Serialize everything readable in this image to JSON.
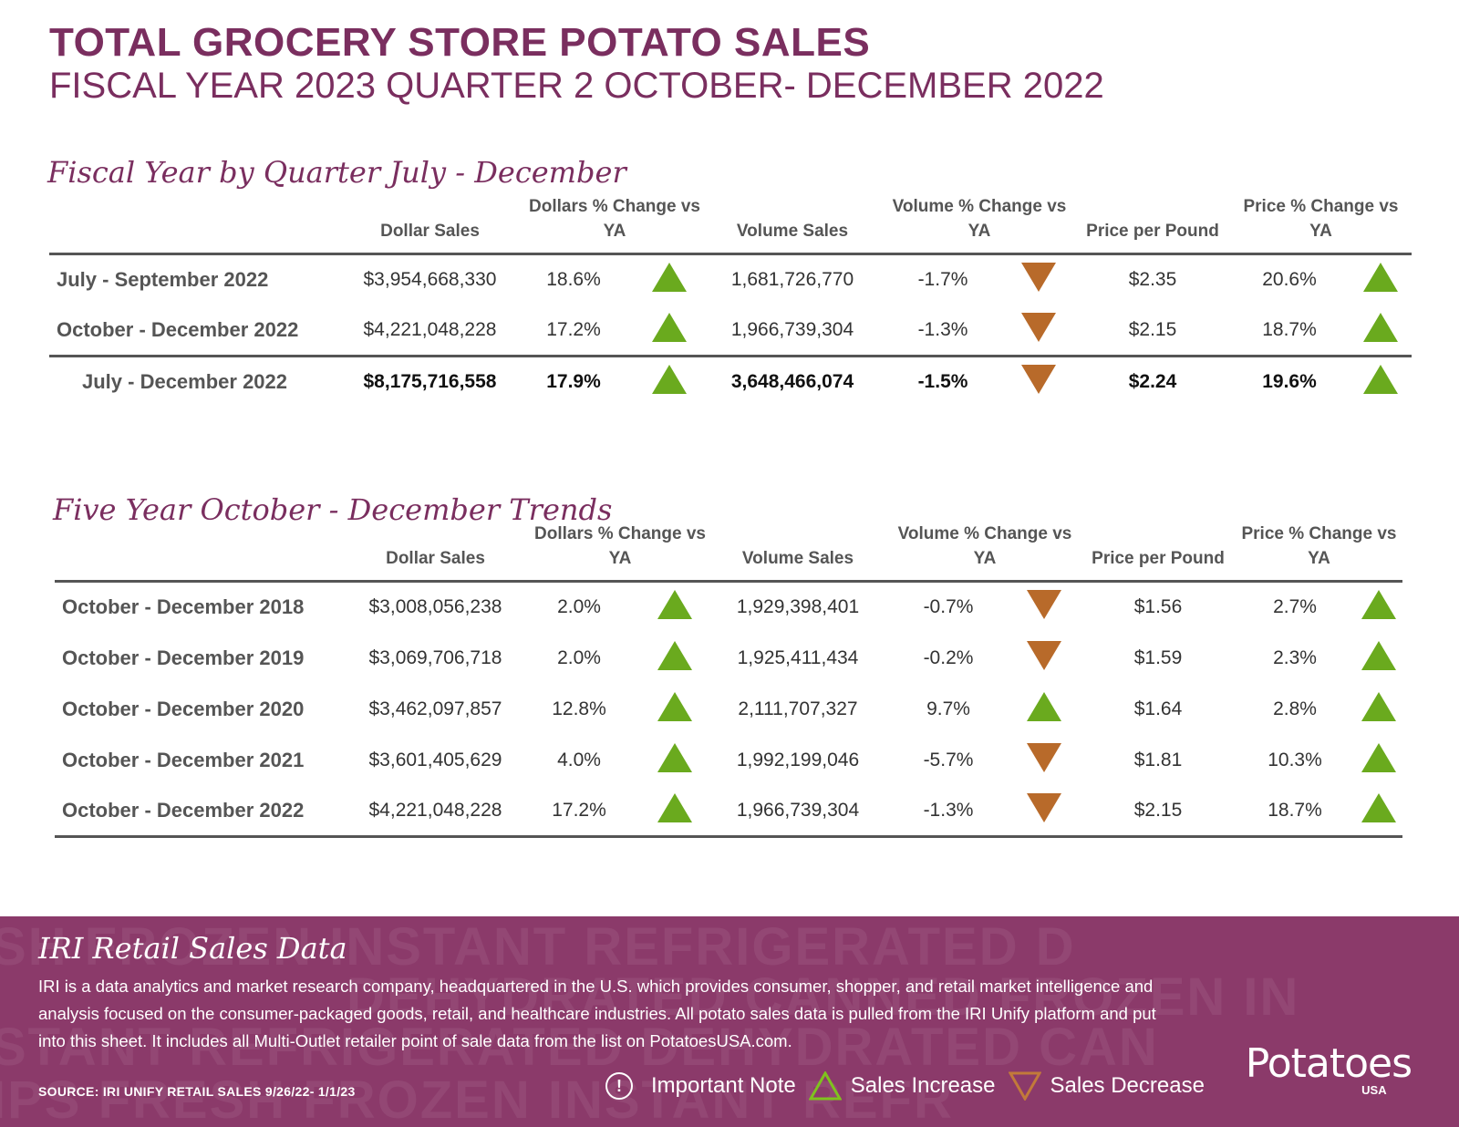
{
  "header": {
    "title": "TOTAL GROCERY STORE POTATO SALES",
    "subtitle": "FISCAL YEAR 2023 QUARTER 2 OCTOBER- DECEMBER 2022"
  },
  "colors": {
    "brand": "#7a2e5f",
    "increase": "#6aaa1e",
    "decrease": "#b86a2a",
    "footer": "#8b3a6a"
  },
  "section1": {
    "title": "Fiscal Year by Quarter July - December",
    "columns": {
      "dollar_sales": "Dollar Sales",
      "dollars_change": "Dollars % Change vs YA",
      "volume_sales": "Volume Sales",
      "volume_change": "Volume % Change vs YA",
      "price_per_pound": "Price per Pound",
      "price_change": "Price % Change vs YA"
    },
    "rows": [
      {
        "label": "July - September 2022",
        "dollar_sales": "$3,954,668,330",
        "dollars_change": "18.6%",
        "volume_sales": "1,681,726,770",
        "volume_change": "-1.7%",
        "price": "$2.35",
        "price_change": "20.6%"
      },
      {
        "label": "October - December 2022",
        "dollar_sales": "$4,221,048,228",
        "dollars_change": "17.2%",
        "volume_sales": "1,966,739,304",
        "volume_change": "-1.3%",
        "price": "$2.15",
        "price_change": "18.7%"
      }
    ],
    "total": {
      "label": "July - December 2022",
      "dollar_sales": "$8,175,716,558",
      "dollars_change": "17.9%",
      "volume_sales": "3,648,466,074",
      "volume_change": "-1.5%",
      "price": "$2.24",
      "price_change": "19.6%"
    }
  },
  "section2": {
    "title": "Five Year October - December Trends",
    "columns": {
      "dollar_sales": "Dollar Sales",
      "dollars_change": "Dollars % Change vs YA",
      "volume_sales": "Volume Sales",
      "volume_change": "Volume % Change vs YA",
      "price_per_pound": "Price per Pound",
      "price_change": "Price % Change vs YA"
    },
    "rows": [
      {
        "label": "October - December 2018",
        "dollar_sales": "$3,008,056,238",
        "dollars_change": "2.0%",
        "volume_sales": "1,929,398,401",
        "volume_change": "-0.7%",
        "price": "$1.56",
        "price_change": "2.7%"
      },
      {
        "label": "October - December 2019",
        "dollar_sales": "$3,069,706,718",
        "dollars_change": "2.0%",
        "volume_sales": "1,925,411,434",
        "volume_change": "-0.2%",
        "price": "$1.59",
        "price_change": "2.3%"
      },
      {
        "label": "October - December 2020",
        "dollar_sales": "$3,462,097,857",
        "dollars_change": "12.8%",
        "volume_sales": "2,111,707,327",
        "volume_change": "9.7%",
        "price": "$1.64",
        "price_change": "2.8%"
      },
      {
        "label": "October - December 2021",
        "dollar_sales": "$3,601,405,629",
        "dollars_change": "4.0%",
        "volume_sales": "1,992,199,046",
        "volume_change": "-5.7%",
        "price": "$1.81",
        "price_change": "10.3%"
      },
      {
        "label": "October - December 2022",
        "dollar_sales": "$4,221,048,228",
        "dollars_change": "17.2%",
        "volume_sales": "1,966,739,304",
        "volume_change": "-1.3%",
        "price": "$2.15",
        "price_change": "18.7%"
      }
    ]
  },
  "footer": {
    "title": "IRI Retail Sales Data",
    "description": "IRI is a data analytics and market research company, headquartered in the U.S. which provides consumer, shopper, and retail market intelligence and analysis focused on the consumer-packaged goods, retail, and healthcare industries. All potato sales data is pulled from the IRI Unify platform and put into this sheet. It includes all Multi-Outlet retailer point of sale data from the list on PotatoesUSA.com.",
    "source": "SOURCE: IRI UNIFY RETAIL SALES 9/26/22- 1/1/23",
    "legend": {
      "note": "Important Note",
      "increase": "Sales Increase",
      "decrease": "Sales Decrease"
    },
    "watermark": [
      "SH FROZEN INSTANT REFRIGERATED D",
      "DEHYDRATED CANNED FROZEN IN",
      "STANT REFRIGERATED DEHYDRATED CAN",
      "IPS FRESH FROZEN INSTANT REFR"
    ],
    "logo": {
      "name": "Potatoes",
      "usa": "USA"
    }
  }
}
